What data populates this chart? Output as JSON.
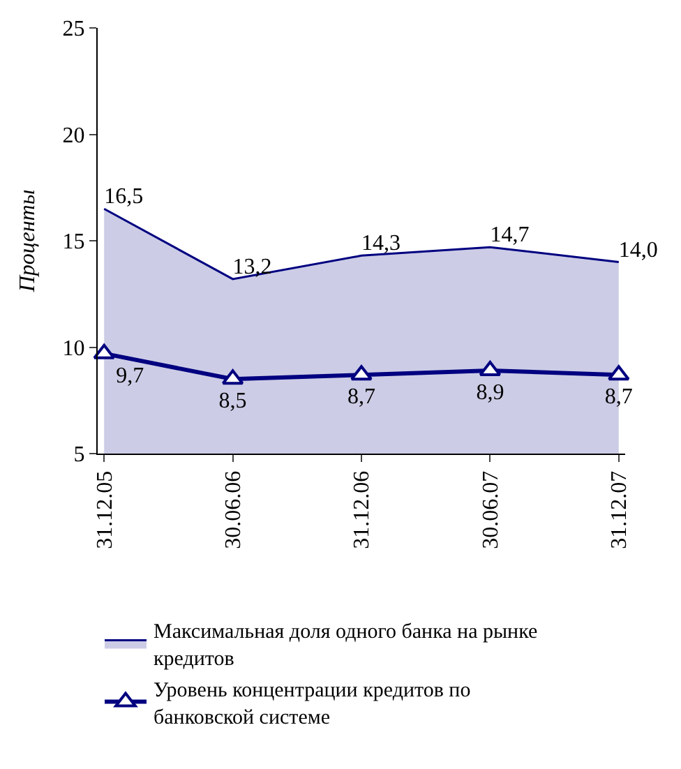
{
  "chart_data": {
    "type": "area",
    "ylabel": "Проценты",
    "categories": [
      "31.12.05",
      "30.06.06",
      "31.12.06",
      "30.06.07",
      "31.12.07"
    ],
    "series": [
      {
        "name": "Максимальная доля одного банка на рынке кредитов",
        "color": "#000080",
        "values": [
          16.5,
          13.2,
          14.3,
          14.7,
          14.0
        ],
        "value_labels": [
          "16,5",
          "13,2",
          "14,3",
          "14,7",
          "14,0"
        ]
      },
      {
        "name": "Уровень концентрации кредитов по банковской системе",
        "type": "line",
        "color": "#000080",
        "marker": "triangle",
        "values": [
          9.7,
          8.5,
          8.7,
          8.9,
          8.7
        ],
        "value_labels": [
          "9,7",
          "8,5",
          "8,7",
          "8,9",
          "8,7"
        ]
      }
    ],
    "ylim": [
      5,
      25
    ],
    "yticks": [
      5,
      10,
      15,
      20,
      25
    ],
    "legend": "bottom"
  }
}
